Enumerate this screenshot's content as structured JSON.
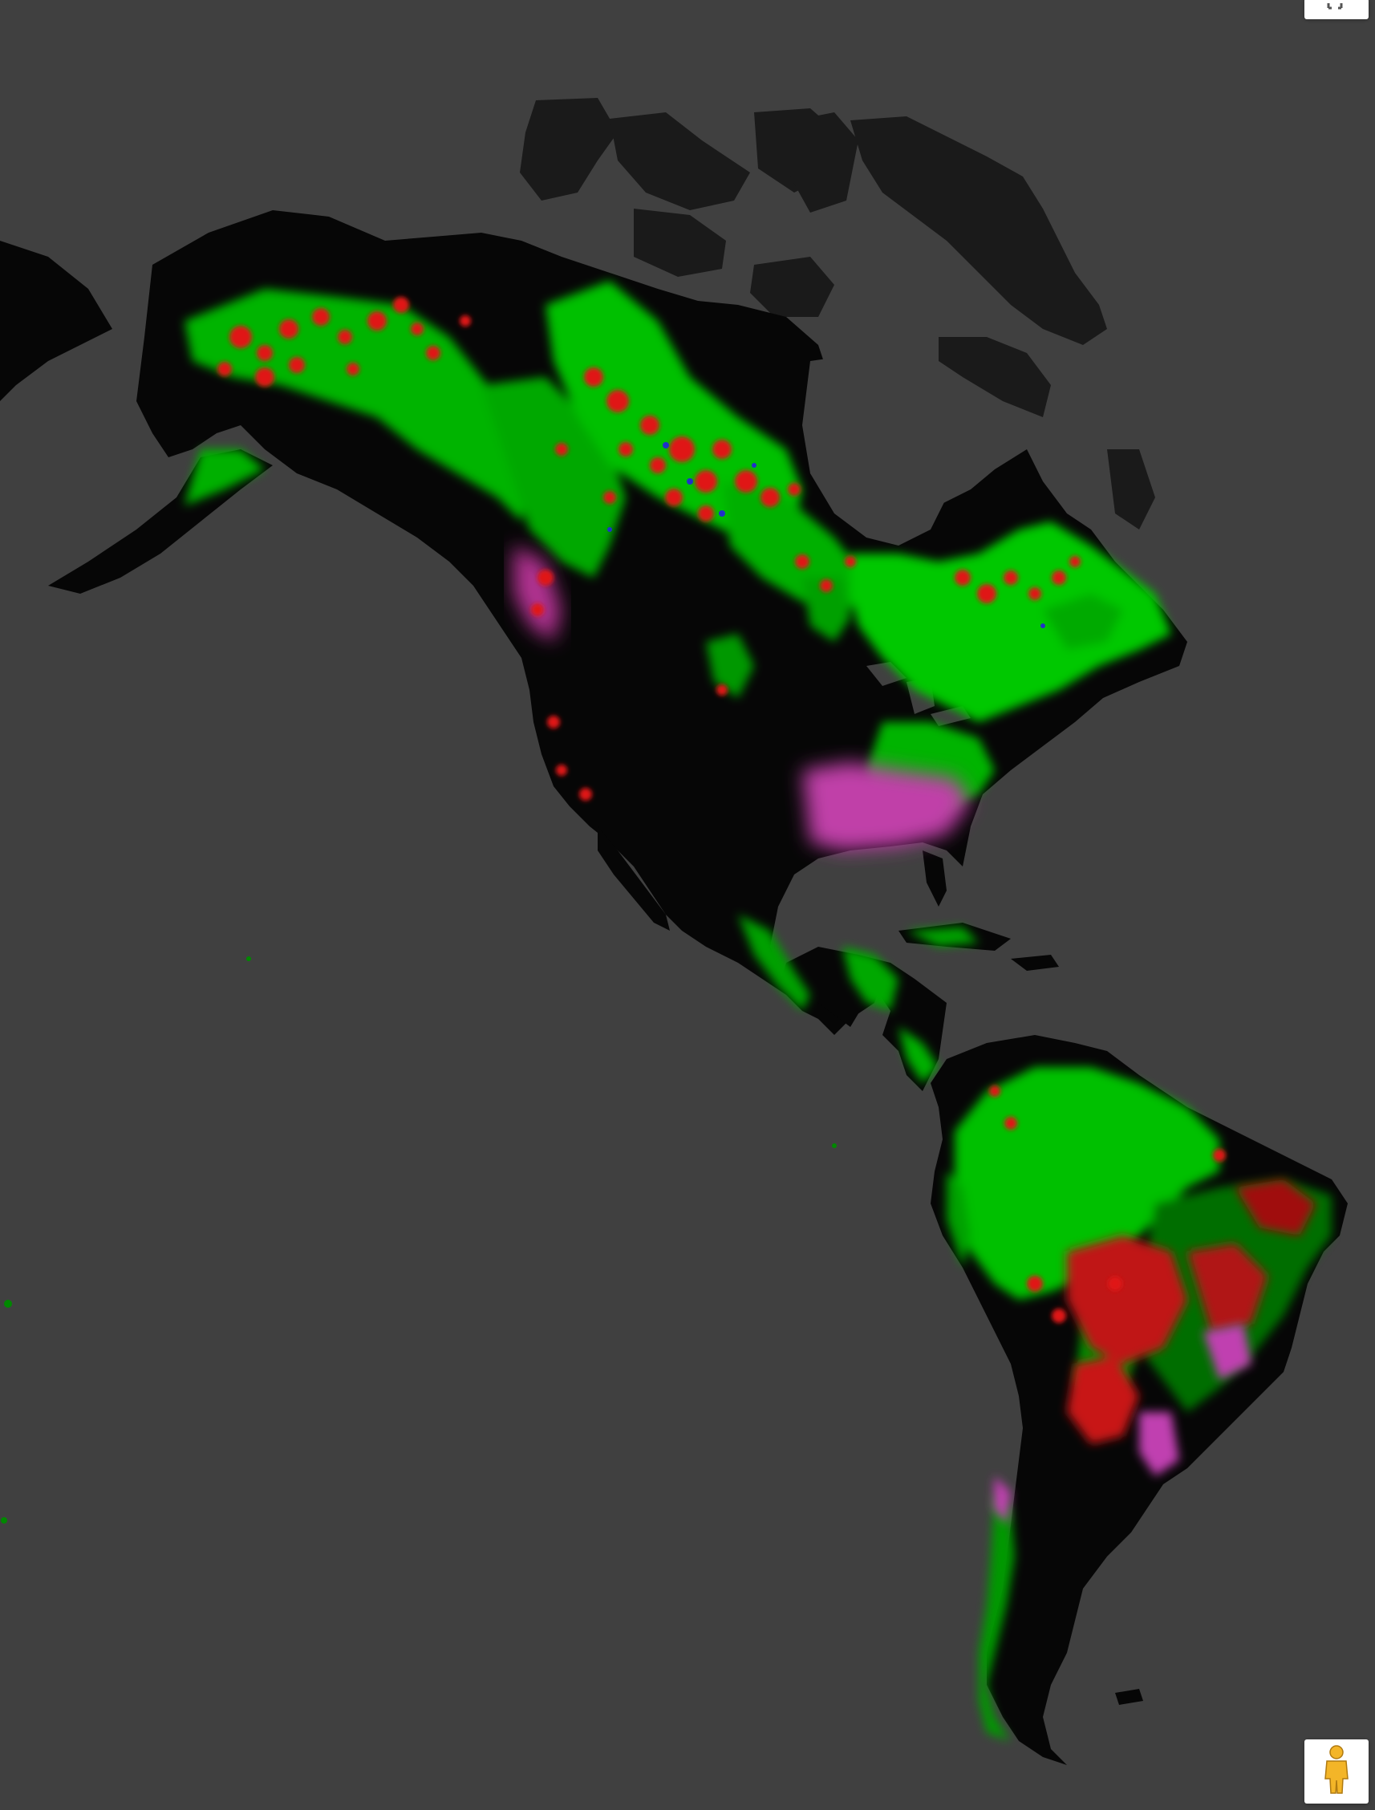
{
  "map": {
    "background_color": "#404040",
    "land_base_color": "#000000",
    "arctic_land_color": "#1a1a1a",
    "legend_colors": {
      "forest_extent": "#00cc00",
      "forest_loss": "#e01818",
      "forest_gain": "#2030c8",
      "loss_and_gain": "#d040b0"
    }
  },
  "controls": {
    "fullscreen": {
      "icon": "fullscreen-icon"
    },
    "street_view": {
      "icon": "pegman-icon",
      "pegman_color": "#f3b528"
    }
  }
}
